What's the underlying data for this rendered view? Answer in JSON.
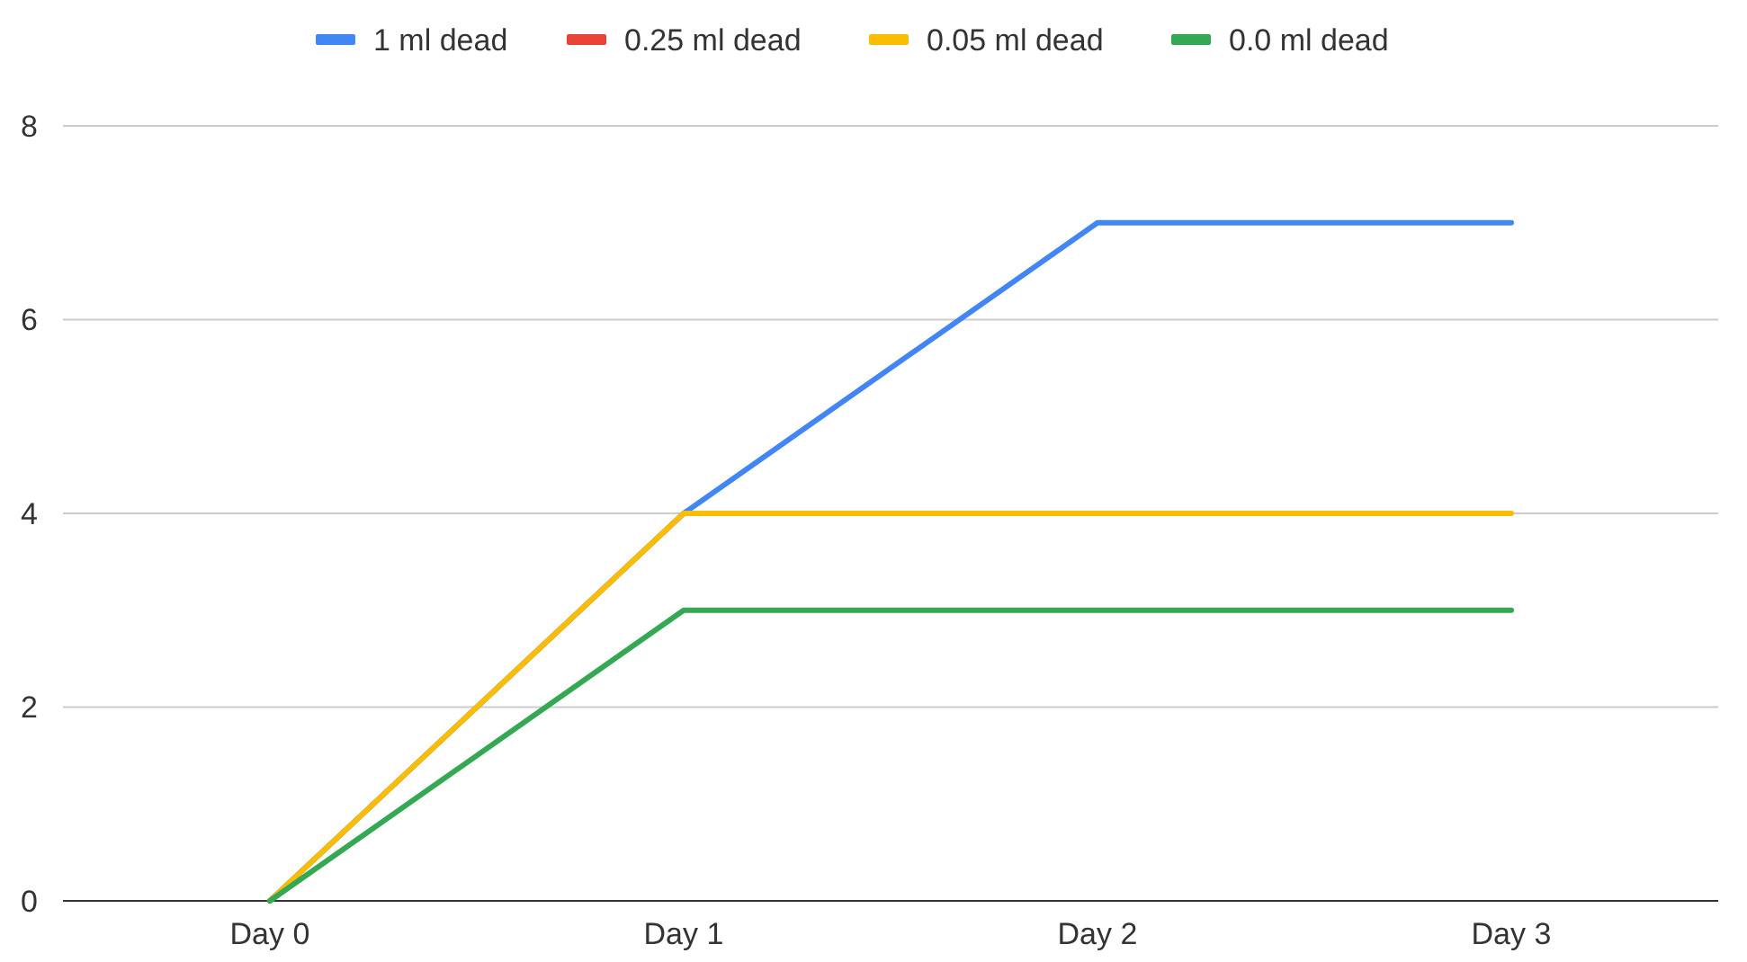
{
  "chart_data": {
    "type": "line",
    "categories": [
      "Day 0",
      "Day 1",
      "Day 2",
      "Day 3"
    ],
    "series": [
      {
        "name": "1 ml dead",
        "color": "#4285f4",
        "values": [
          0,
          4,
          7,
          7
        ]
      },
      {
        "name": "0.25 ml dead",
        "color": "#ea4335",
        "values": [
          null,
          null,
          null,
          null
        ]
      },
      {
        "name": "0.05 ml dead",
        "color": "#fbbc04",
        "values": [
          0,
          4,
          4,
          4
        ]
      },
      {
        "name": "0.0 ml dead",
        "color": "#34a853",
        "values": [
          0,
          3,
          3,
          3
        ]
      }
    ],
    "ylim": [
      0,
      8
    ],
    "yticks": [
      0,
      2,
      4,
      6,
      8
    ],
    "grid": "y",
    "legend": "top",
    "marker": "none",
    "line_style": "solid"
  }
}
